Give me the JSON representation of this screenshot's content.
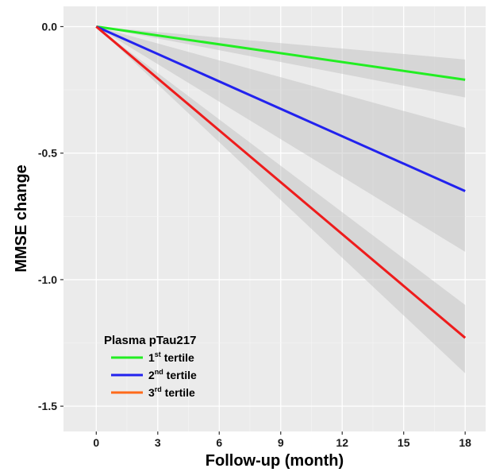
{
  "chart_data": {
    "type": "line",
    "xlabel": "Follow-up (month)",
    "ylabel": "MMSE change",
    "xlim": [
      -1.6,
      19.0
    ],
    "ylim": [
      -1.6,
      0.08
    ],
    "x_ticks": [
      0,
      3,
      6,
      9,
      12,
      15,
      18
    ],
    "x_tick_labels": [
      "0",
      "3",
      "6",
      "9",
      "12",
      "15",
      "18"
    ],
    "y_ticks": [
      0.0,
      -0.5,
      -1.0,
      -1.5
    ],
    "y_tick_labels": [
      "0.0",
      "-0.5",
      "-1.0",
      "-1.5"
    ],
    "grid": true,
    "background": "#ebebeb",
    "legend": {
      "title": "Plasma pTau217",
      "placement": "bottom-left",
      "entries": [
        {
          "base": "1",
          "sup": "st",
          "text": " tertile",
          "color": "#22ee22"
        },
        {
          "base": "2",
          "sup": "nd",
          "text": " tertile",
          "color": "#2222ee"
        },
        {
          "base": "3",
          "sup": "rd",
          "text": " tertile",
          "color": "#ff6a1a"
        }
      ]
    },
    "series": [
      {
        "color": "#22ee22",
        "x": [
          0,
          18
        ],
        "y": [
          0.0,
          -0.21
        ],
        "ci_lower": [
          0.0,
          -0.28
        ],
        "ci_upper": [
          0.0,
          -0.13
        ]
      },
      {
        "color": "#2222ee",
        "x": [
          0,
          18
        ],
        "y": [
          0.0,
          -0.65
        ],
        "ci_lower": [
          0.0,
          -0.89
        ],
        "ci_upper": [
          0.0,
          -0.4
        ]
      },
      {
        "color": "#ee1c1c",
        "x": [
          0,
          18
        ],
        "y": [
          0.0,
          -1.23
        ],
        "ci_lower": [
          0.0,
          -1.37
        ],
        "ci_upper": [
          0.0,
          -1.1
        ]
      }
    ]
  }
}
